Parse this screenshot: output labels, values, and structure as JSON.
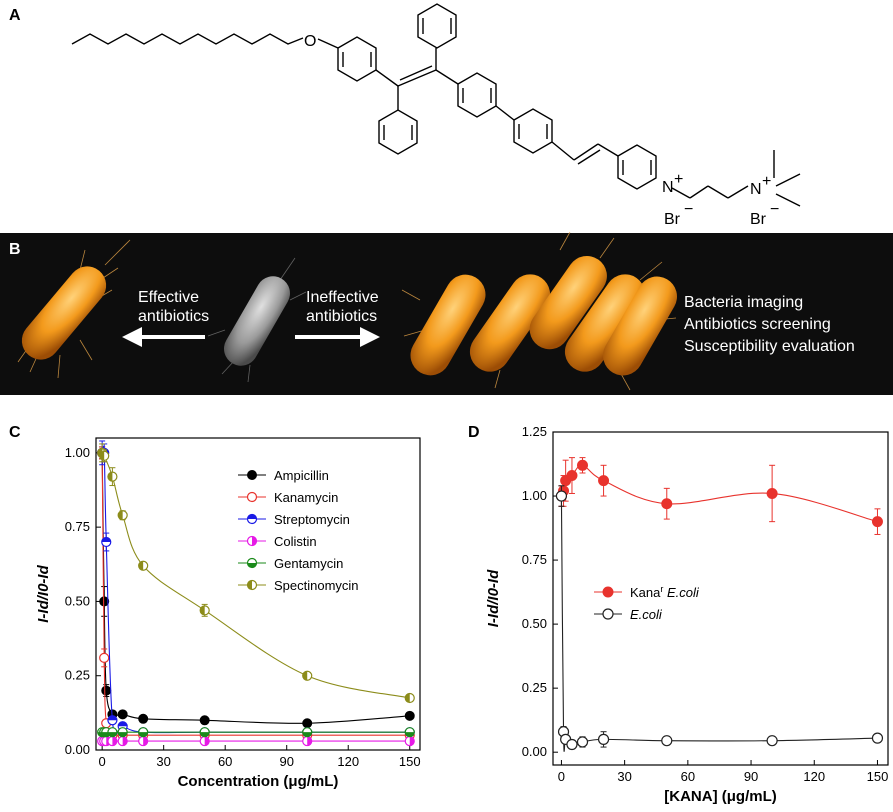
{
  "panels": {
    "a": "A",
    "b": "B",
    "c": "C",
    "d": "D"
  },
  "molecule": {
    "atom_o": "O",
    "atom_n1": "N",
    "charge1": "+",
    "atom_n2": "N",
    "charge2": "+",
    "counterion1": "Br",
    "counterion2": "Br",
    "minus": "−"
  },
  "banner": {
    "left_label_line1": "Effective",
    "left_label_line2": "antibiotics",
    "right_label_line1": "Ineffective",
    "right_label_line2": "antibiotics",
    "apps": [
      "Bacteria imaging",
      "Antibiotics screening",
      "Susceptibility evaluation"
    ],
    "background_color": "#0d0d0d",
    "bacteria_color": "#f39a1c",
    "dead_bacteria_color": "#9a9a9a"
  },
  "chart_data": [
    {
      "type": "scatter",
      "panel": "C",
      "xlabel": "Concentration (μg/mL)",
      "ylabel": "I-Id/I0-Id",
      "xlim": [
        -3,
        155
      ],
      "ylim": [
        0,
        1.05
      ],
      "xticks": [
        "0",
        "30",
        "60",
        "90",
        "120",
        "150"
      ],
      "yticks": [
        "0.00",
        "0.25",
        "0.50",
        "0.75",
        "1.00"
      ],
      "legend": "top-right",
      "series": [
        {
          "name": "Ampicillin",
          "color": "#000000",
          "marker": "filled",
          "x": [
            0,
            1,
            2,
            5,
            10,
            20,
            50,
            100,
            150
          ],
          "y": [
            1.0,
            0.5,
            0.2,
            0.12,
            0.12,
            0.105,
            0.1,
            0.09,
            0.115
          ]
        },
        {
          "name": "Kanamycin",
          "color": "#e8332d",
          "marker": "open",
          "x": [
            0,
            1,
            2,
            5,
            10,
            20,
            50,
            100,
            150
          ],
          "y": [
            1.0,
            0.31,
            0.09,
            0.05,
            0.05,
            0.05,
            0.05,
            0.05,
            0.05
          ]
        },
        {
          "name": "Streptomycin",
          "color": "#1a1ae6",
          "marker": "half-top",
          "x": [
            0,
            1,
            2,
            5,
            10,
            20,
            50,
            100,
            150
          ],
          "y": [
            1.0,
            1.0,
            0.7,
            0.1,
            0.08,
            0.06,
            0.06,
            0.06,
            0.06
          ]
        },
        {
          "name": "Colistin",
          "color": "#e61ae6",
          "marker": "half-right",
          "x": [
            0,
            1,
            2,
            5,
            10,
            20,
            50,
            100,
            150
          ],
          "y": [
            0.03,
            0.03,
            0.03,
            0.03,
            0.03,
            0.03,
            0.03,
            0.03,
            0.03
          ]
        },
        {
          "name": "Gentamycin",
          "color": "#1a8a1a",
          "marker": "half-bottom",
          "x": [
            0,
            1,
            2,
            5,
            10,
            20,
            50,
            100,
            150
          ],
          "y": [
            0.06,
            0.06,
            0.06,
            0.06,
            0.06,
            0.06,
            0.06,
            0.06,
            0.06
          ]
        },
        {
          "name": "Spectinomycin",
          "color": "#8c8c1a",
          "marker": "half-left",
          "x": [
            0,
            1,
            5,
            10,
            20,
            50,
            100,
            150
          ],
          "y": [
            1.0,
            0.99,
            0.92,
            0.79,
            0.62,
            0.47,
            0.25,
            0.175
          ]
        }
      ]
    },
    {
      "type": "scatter",
      "panel": "D",
      "xlabel": "[KANA] (μg/mL)",
      "ylabel": "I-Id/I0-Id",
      "xlim": [
        -4,
        155
      ],
      "ylim": [
        -0.05,
        1.25
      ],
      "xticks": [
        "0",
        "30",
        "60",
        "90",
        "120",
        "150"
      ],
      "yticks": [
        "0.00",
        "0.25",
        "0.50",
        "0.75",
        "1.00",
        "1.25"
      ],
      "legend": "center-left",
      "series": [
        {
          "name": "Kana",
          "name_sup": "r",
          "name_italic": "E.coli",
          "color": "#e8332d",
          "marker": "filled",
          "x": [
            0,
            1,
            2,
            5,
            10,
            20,
            50,
            100,
            150
          ],
          "y": [
            1.0,
            1.02,
            1.06,
            1.08,
            1.12,
            1.06,
            0.97,
            1.01,
            0.9
          ]
        },
        {
          "name_italic": "E.coli",
          "color": "#222222",
          "marker": "open",
          "x": [
            0,
            1,
            2,
            5,
            10,
            20,
            50,
            100,
            150
          ],
          "y": [
            1.0,
            0.08,
            0.05,
            0.03,
            0.04,
            0.05,
            0.045,
            0.045,
            0.055
          ]
        }
      ]
    }
  ]
}
